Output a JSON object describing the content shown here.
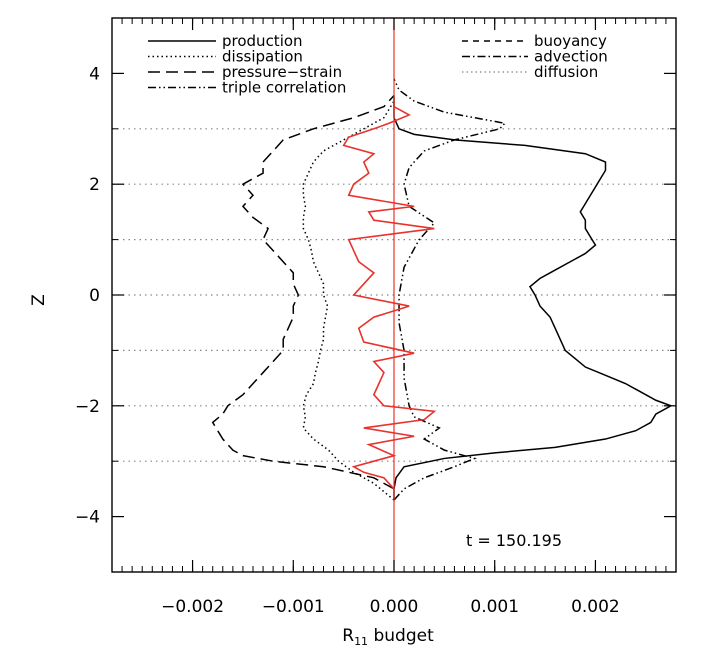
{
  "chart_data": {
    "type": "line",
    "title": "",
    "xlabel": "R",
    "xlabel_sub": "11",
    "xlabel_rest": " budget",
    "ylabel": "Z",
    "xlim": [
      -0.0028,
      0.0028
    ],
    "ylim": [
      -5,
      5
    ],
    "x_ticks": [
      -0.002,
      -0.001,
      0.0,
      0.001,
      0.002
    ],
    "x_tick_labels": [
      "−0.002",
      "−0.001",
      "0.000",
      "0.001",
      "0.002"
    ],
    "y_ticks": [
      -4,
      -2,
      0,
      2,
      4
    ],
    "y_tick_labels": [
      "−4",
      "−2",
      "0",
      "2",
      "4"
    ],
    "reference_lines_z": [
      -3,
      -2,
      -1,
      0,
      1,
      2,
      3
    ],
    "annotation": "t  =  150.195",
    "legend_left": [
      "production",
      "dissipation",
      "pressure−strain",
      "triple correlation"
    ],
    "legend_right": [
      "buoyancy",
      "advection",
      "diffusion"
    ],
    "series": [
      {
        "name": "production",
        "style": "solid",
        "color": "#000000",
        "points": [
          [
            -3.7,
            0
          ],
          [
            -3.5,
            0
          ],
          [
            -3.3,
            2e-05
          ],
          [
            -3.1,
            0.0001
          ],
          [
            -2.95,
            0.0005
          ],
          [
            -2.85,
            0.001
          ],
          [
            -2.75,
            0.0016
          ],
          [
            -2.6,
            0.0021
          ],
          [
            -2.45,
            0.0024
          ],
          [
            -2.3,
            0.00255
          ],
          [
            -2.15,
            0.0026
          ],
          [
            -2.0,
            0.00275
          ],
          [
            -1.9,
            0.0026
          ],
          [
            -1.75,
            0.00245
          ],
          [
            -1.6,
            0.0023
          ],
          [
            -1.45,
            0.0021
          ],
          [
            -1.3,
            0.0019
          ],
          [
            -1.15,
            0.0018
          ],
          [
            -1.0,
            0.0017
          ],
          [
            -0.8,
            0.00165
          ],
          [
            -0.6,
            0.0016
          ],
          [
            -0.4,
            0.00155
          ],
          [
            -0.2,
            0.00145
          ],
          [
            0.0,
            0.0014
          ],
          [
            0.15,
            0.00135
          ],
          [
            0.3,
            0.00145
          ],
          [
            0.45,
            0.0016
          ],
          [
            0.6,
            0.00175
          ],
          [
            0.75,
            0.0019
          ],
          [
            0.9,
            0.002
          ],
          [
            1.05,
            0.00195
          ],
          [
            1.2,
            0.0019
          ],
          [
            1.35,
            0.0019
          ],
          [
            1.5,
            0.00185
          ],
          [
            1.65,
            0.0019
          ],
          [
            1.8,
            0.00195
          ],
          [
            1.95,
            0.002
          ],
          [
            2.1,
            0.00205
          ],
          [
            2.25,
            0.0021
          ],
          [
            2.4,
            0.0021
          ],
          [
            2.55,
            0.0019
          ],
          [
            2.7,
            0.0013
          ],
          [
            2.8,
            0.0006
          ],
          [
            2.9,
            0.0002
          ],
          [
            3.0,
            5e-05
          ],
          [
            3.2,
            0.0
          ],
          [
            3.6,
            0.0
          ]
        ]
      },
      {
        "name": "dissipation",
        "style": "dotted",
        "color": "#000000",
        "points": [
          [
            -3.7,
            0
          ],
          [
            -3.4,
            -0.0002
          ],
          [
            -3.2,
            -0.0004
          ],
          [
            -3.0,
            -0.00055
          ],
          [
            -2.8,
            -0.00065
          ],
          [
            -2.6,
            -0.0008
          ],
          [
            -2.4,
            -0.0009
          ],
          [
            -2.2,
            -0.00088
          ],
          [
            -2.0,
            -0.0009
          ],
          [
            -1.8,
            -0.00087
          ],
          [
            -1.6,
            -0.0008
          ],
          [
            -1.4,
            -0.00078
          ],
          [
            -1.2,
            -0.00075
          ],
          [
            -1.0,
            -0.00073
          ],
          [
            -0.8,
            -0.0007
          ],
          [
            -0.6,
            -0.0007
          ],
          [
            -0.4,
            -0.00068
          ],
          [
            -0.2,
            -0.00066
          ],
          [
            0.0,
            -0.0007
          ],
          [
            0.2,
            -0.0007
          ],
          [
            0.4,
            -0.00075
          ],
          [
            0.6,
            -0.0008
          ],
          [
            0.8,
            -0.00082
          ],
          [
            1.0,
            -0.00085
          ],
          [
            1.2,
            -0.0009
          ],
          [
            1.4,
            -0.0009
          ],
          [
            1.6,
            -0.00088
          ],
          [
            1.8,
            -0.0009
          ],
          [
            2.0,
            -0.0009
          ],
          [
            2.2,
            -0.00085
          ],
          [
            2.4,
            -0.0008
          ],
          [
            2.6,
            -0.0007
          ],
          [
            2.8,
            -0.0005
          ],
          [
            3.0,
            -0.0003
          ],
          [
            3.2,
            -0.0001
          ],
          [
            3.5,
            0.0
          ]
        ]
      },
      {
        "name": "pressure−strain",
        "style": "longdash",
        "color": "#000000",
        "points": [
          [
            -3.5,
            0
          ],
          [
            -3.3,
            -0.0002
          ],
          [
            -3.1,
            -0.0007
          ],
          [
            -3.0,
            -0.0012
          ],
          [
            -2.9,
            -0.0015
          ],
          [
            -2.8,
            -0.0016
          ],
          [
            -2.6,
            -0.0017
          ],
          [
            -2.45,
            -0.00175
          ],
          [
            -2.3,
            -0.0018
          ],
          [
            -2.15,
            -0.0017
          ],
          [
            -2.0,
            -0.00165
          ],
          [
            -1.8,
            -0.0015
          ],
          [
            -1.6,
            -0.0014
          ],
          [
            -1.4,
            -0.0013
          ],
          [
            -1.2,
            -0.0012
          ],
          [
            -1.0,
            -0.0011
          ],
          [
            -0.8,
            -0.0011
          ],
          [
            -0.6,
            -0.00105
          ],
          [
            -0.4,
            -0.001
          ],
          [
            -0.2,
            -0.001
          ],
          [
            0.0,
            -0.00095
          ],
          [
            0.2,
            -0.001
          ],
          [
            0.4,
            -0.001
          ],
          [
            0.6,
            -0.0011
          ],
          [
            0.8,
            -0.0012
          ],
          [
            1.0,
            -0.0013
          ],
          [
            1.2,
            -0.00125
          ],
          [
            1.4,
            -0.0014
          ],
          [
            1.6,
            -0.0015
          ],
          [
            1.8,
            -0.0014
          ],
          [
            2.0,
            -0.0015
          ],
          [
            2.2,
            -0.0013
          ],
          [
            2.4,
            -0.0013
          ],
          [
            2.6,
            -0.0012
          ],
          [
            2.8,
            -0.0011
          ],
          [
            3.0,
            -0.0008
          ],
          [
            3.2,
            -0.0004
          ],
          [
            3.4,
            -0.0001
          ],
          [
            3.6,
            0.0
          ]
        ]
      },
      {
        "name": "triple correlation",
        "style": "dashdotdot",
        "color": "#000000",
        "points": [
          [
            -3.7,
            0
          ],
          [
            -3.5,
            0.0001
          ],
          [
            -3.3,
            0.0003
          ],
          [
            -3.1,
            0.0006
          ],
          [
            -2.95,
            0.0008
          ],
          [
            -2.8,
            0.0005
          ],
          [
            -2.6,
            0.0003
          ],
          [
            -2.4,
            0.00045
          ],
          [
            -2.2,
            0.0002
          ],
          [
            -2.0,
            0.00015
          ],
          [
            -1.5,
            0.0001
          ],
          [
            -1.0,
            0.0001
          ],
          [
            -0.5,
            5e-05
          ],
          [
            0.0,
            5e-05
          ],
          [
            0.5,
            0.0001
          ],
          [
            1.0,
            0.00025
          ],
          [
            1.3,
            0.0004
          ],
          [
            1.6,
            0.00015
          ],
          [
            2.0,
            0.0001
          ],
          [
            2.3,
            0.00015
          ],
          [
            2.6,
            0.0003
          ],
          [
            2.8,
            0.0006
          ],
          [
            3.0,
            0.00105
          ],
          [
            3.1,
            0.0011
          ],
          [
            3.3,
            0.0005
          ],
          [
            3.5,
            0.0002
          ],
          [
            3.7,
            5e-05
          ],
          [
            3.9,
            0.0
          ]
        ]
      },
      {
        "name": "R₁₁ budget (red)",
        "style": "solid",
        "color": "#e8322b",
        "points": [
          [
            -3.5,
            0
          ],
          [
            -3.3,
            -0.0001
          ],
          [
            -3.2,
            -0.0003
          ],
          [
            -3.1,
            -0.0004
          ],
          [
            -3.0,
            -0.0002
          ],
          [
            -2.9,
            0.0
          ],
          [
            -2.7,
            -0.00025
          ],
          [
            -2.55,
            0.0002
          ],
          [
            -2.4,
            -0.0003
          ],
          [
            -2.25,
            0.0003
          ],
          [
            -2.1,
            0.0004
          ],
          [
            -2.0,
            -0.0001
          ],
          [
            -1.8,
            -0.0002
          ],
          [
            -1.6,
            -0.00015
          ],
          [
            -1.4,
            -0.0001
          ],
          [
            -1.2,
            -0.0002
          ],
          [
            -1.05,
            0.0002
          ],
          [
            -0.85,
            -0.0003
          ],
          [
            -0.6,
            -0.00035
          ],
          [
            -0.4,
            -0.0002
          ],
          [
            -0.2,
            0.00015
          ],
          [
            0.0,
            -0.0004
          ],
          [
            0.2,
            -0.0003
          ],
          [
            0.4,
            -0.0002
          ],
          [
            0.6,
            -0.00035
          ],
          [
            0.8,
            -0.0004
          ],
          [
            1.0,
            -0.00045
          ],
          [
            1.2,
            0.0004
          ],
          [
            1.35,
            -0.0002
          ],
          [
            1.5,
            -0.00025
          ],
          [
            1.6,
            0.0002
          ],
          [
            1.8,
            -0.00045
          ],
          [
            2.0,
            -0.0004
          ],
          [
            2.2,
            -0.00025
          ],
          [
            2.4,
            -0.0003
          ],
          [
            2.55,
            -0.0002
          ],
          [
            2.7,
            -0.0005
          ],
          [
            2.85,
            -0.00045
          ],
          [
            3.0,
            -0.0002
          ],
          [
            3.1,
            -5e-05
          ],
          [
            3.25,
            0.00015
          ],
          [
            3.4,
            0.0
          ],
          [
            3.5,
            0.0
          ]
        ]
      }
    ]
  }
}
